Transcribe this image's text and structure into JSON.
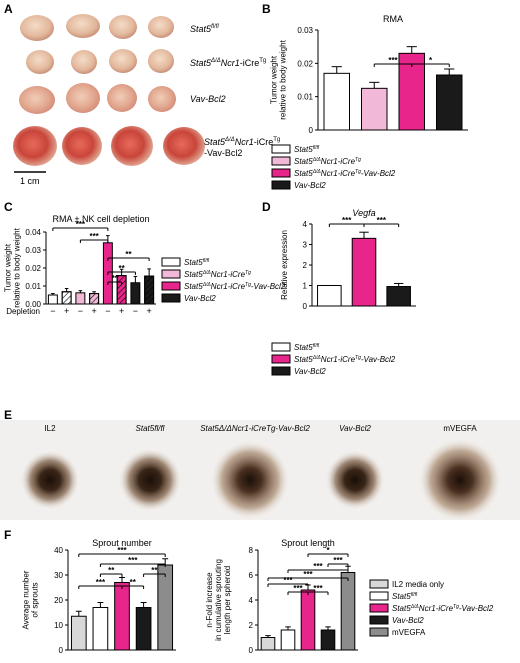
{
  "panels": {
    "A": "A",
    "B": "B",
    "C": "C",
    "D": "D",
    "E": "E",
    "F": "F"
  },
  "panel_a": {
    "rows": [
      {
        "label": "Stat5",
        "sup": "fl/fl",
        "rest": ""
      },
      {
        "label": "Stat5",
        "sup": "Δ/Δ",
        "rest": "Ncr1",
        "rest2": "-iCre",
        "sup2": "Tg"
      },
      {
        "label": "Vav-Bcl2",
        "sup": "",
        "rest": ""
      },
      {
        "label": "Stat5",
        "sup": "Δ/Δ",
        "rest": "Ncr1",
        "rest2": "-iCre",
        "sup2": "Tg",
        "line2": "-Vav-Bcl2"
      }
    ],
    "scalebar": "1 cm"
  },
  "legend_4": [
    {
      "main": "Stat5",
      "sup": "fl/fl",
      "post": "",
      "sup2": "",
      "post2": "",
      "color": "#ffffff"
    },
    {
      "main": "Stat5",
      "sup": "Δ/Δ",
      "post": "Ncr1-iCre",
      "sup2": "Tg",
      "post2": "",
      "color": "#f1b8d8"
    },
    {
      "main": "Stat5",
      "sup": "Δ/Δ",
      "post": "Ncr1-iCre",
      "sup2": "Tg",
      "post2": "-Vav-Bcl2",
      "color": "#e8258a"
    },
    {
      "main": "Vav-Bcl2",
      "sup": "",
      "post": "",
      "sup2": "",
      "post2": "",
      "color": "#1a1a1a"
    }
  ],
  "legend_3": [
    {
      "main": "Stat5",
      "sup": "fl/fl",
      "post": "",
      "sup2": "",
      "post2": "",
      "color": "#ffffff"
    },
    {
      "main": "Stat5",
      "sup": "Δ/Δ",
      "post": "Ncr1-iCre",
      "sup2": "Tg",
      "post2": "-Vav-Bcl2",
      "color": "#e8258a"
    },
    {
      "main": "Vav-Bcl2",
      "sup": "",
      "post": "",
      "sup2": "",
      "post2": "",
      "color": "#1a1a1a"
    }
  ],
  "legend_f": [
    {
      "main": "IL2 media only",
      "sup": "",
      "post": "",
      "sup2": "",
      "post2": "",
      "color": "#d8d8d8",
      "italic": false
    },
    {
      "main": "Stat5",
      "sup": "fl/fl",
      "post": "",
      "sup2": "",
      "post2": "",
      "color": "#ffffff",
      "italic": true
    },
    {
      "main": "Stat5",
      "sup": "Δ/Δ",
      "post": "Ncr1-iCre",
      "sup2": "Tg",
      "post2": "-Vav-Bcl2",
      "color": "#e8258a",
      "italic": true
    },
    {
      "main": "Vav-Bcl2",
      "sup": "",
      "post": "",
      "sup2": "",
      "post2": "",
      "color": "#1a1a1a",
      "italic": true
    },
    {
      "main": "mVEGFA",
      "sup": "",
      "post": "",
      "sup2": "",
      "post2": "",
      "color": "#8c8c8c",
      "italic": false
    }
  ],
  "panel_e": {
    "labels": [
      "IL2",
      "Stat5fl/fl",
      "Stat5Δ/ΔNcr1-iCreTg-Vav-Bcl2",
      "Vav-Bcl2",
      "mVEGFA"
    ]
  },
  "chart_data": [
    {
      "id": "B",
      "type": "bar",
      "title": "RMA",
      "ylabel": "Tumor weight relative to body weight",
      "ylim": [
        0,
        0.03
      ],
      "yticks": [
        "0",
        "0.01",
        "0.02",
        "0.03"
      ],
      "categories": [
        "Stat5fl/fl",
        "Stat5Δ/ΔNcr1-iCreTg",
        "Stat5Δ/ΔNcr1-iCreTg-Vav-Bcl2",
        "Vav-Bcl2"
      ],
      "values": [
        0.017,
        0.0125,
        0.023,
        0.0165
      ],
      "errors": [
        0.002,
        0.0018,
        0.002,
        0.0018
      ],
      "colors": [
        "#ffffff",
        "#f1b8d8",
        "#e8258a",
        "#1a1a1a"
      ],
      "significance": [
        {
          "from": 1,
          "to": 2,
          "label": "***"
        },
        {
          "from": 2,
          "to": 3,
          "label": "*"
        }
      ]
    },
    {
      "id": "C",
      "type": "bar",
      "title": "RMA ± NK cell depletion",
      "ylabel": "Tumor weight relative to body weight",
      "xlabel": "Depletion",
      "ylim": [
        0,
        0.04
      ],
      "yticks": [
        "0.00",
        "0.01",
        "0.02",
        "0.03",
        "0.04"
      ],
      "categories": [
        "−",
        "+",
        "−",
        "+",
        "−",
        "+",
        "−",
        "+"
      ],
      "values": [
        0.005,
        0.0068,
        0.0062,
        0.0058,
        0.034,
        0.0158,
        0.0118,
        0.0155
      ],
      "errors": [
        0.0008,
        0.0018,
        0.0012,
        0.001,
        0.004,
        0.0035,
        0.0035,
        0.004
      ],
      "colors": [
        "#ffffff",
        "#ffffff",
        "#f1b8d8",
        "#f1b8d8",
        "#e8258a",
        "#e8258a",
        "#1a1a1a",
        "#1a1a1a"
      ],
      "hatched": [
        false,
        true,
        false,
        true,
        false,
        true,
        false,
        true
      ],
      "significance": [
        {
          "from": 0,
          "to": 4,
          "label": "***"
        },
        {
          "from": 2,
          "to": 4,
          "label": "***"
        },
        {
          "from": 4,
          "to": 7,
          "label": "**"
        },
        {
          "from": 4,
          "to": 6,
          "label": "**"
        },
        {
          "from": 4,
          "to": 5,
          "label": "**"
        }
      ]
    },
    {
      "id": "D",
      "type": "bar",
      "title": "Vegfa",
      "ylabel": "Relative expression",
      "ylim": [
        0,
        4
      ],
      "yticks": [
        "0",
        "1",
        "2",
        "3",
        "4"
      ],
      "categories": [
        "Stat5fl/fl",
        "Stat5Δ/ΔNcr1-iCreTg-Vav-Bcl2",
        "Vav-Bcl2"
      ],
      "values": [
        1.0,
        3.3,
        0.95
      ],
      "errors": [
        0,
        0.3,
        0.15
      ],
      "colors": [
        "#ffffff",
        "#e8258a",
        "#1a1a1a"
      ],
      "significance": [
        {
          "from": 0,
          "to": 1,
          "label": "***"
        },
        {
          "from": 1,
          "to": 2,
          "label": "***"
        }
      ]
    },
    {
      "id": "F1",
      "type": "bar",
      "title": "Sprout number",
      "ylabel": "Average number of sprouts",
      "ylim": [
        0,
        40
      ],
      "yticks": [
        "0",
        "10",
        "20",
        "30",
        "40"
      ],
      "categories": [
        "IL2 media only",
        "Stat5fl/fl",
        "Stat5Δ/ΔNcr1-iCreTg-Vav-Bcl2",
        "Vav-Bcl2",
        "mVEGFA"
      ],
      "values": [
        13.5,
        17,
        27,
        17,
        34
      ],
      "errors": [
        2,
        2,
        2,
        2,
        2.5
      ],
      "colors": [
        "#d8d8d8",
        "#ffffff",
        "#e8258a",
        "#1a1a1a",
        "#8c8c8c"
      ],
      "significance": [
        {
          "from": 0,
          "to": 4,
          "label": "***"
        },
        {
          "from": 1,
          "to": 4,
          "label": "***"
        },
        {
          "from": 1,
          "to": 2,
          "label": "**"
        },
        {
          "from": 3,
          "to": 4,
          "label": "**"
        },
        {
          "from": 0,
          "to": 2,
          "label": "***"
        },
        {
          "from": 2,
          "to": 3,
          "label": "**"
        }
      ]
    },
    {
      "id": "F2",
      "type": "bar",
      "title": "Sprout length",
      "ylabel": "n-Fold increase in cumulative sprouting length per spheroid",
      "ylim": [
        0,
        8
      ],
      "yticks": [
        "0",
        "2",
        "4",
        "6",
        "8"
      ],
      "categories": [
        "IL2 media only",
        "Stat5fl/fl",
        "Stat5Δ/ΔNcr1-iCreTg-Vav-Bcl2",
        "Vav-Bcl2",
        "mVEGFA"
      ],
      "values": [
        1.0,
        1.6,
        4.8,
        1.6,
        6.2
      ],
      "errors": [
        0.15,
        0.25,
        0.4,
        0.25,
        0.5
      ],
      "colors": [
        "#d8d8d8",
        "#ffffff",
        "#e8258a",
        "#1a1a1a",
        "#8c8c8c"
      ],
      "significance": [
        {
          "from": 2,
          "to": 4,
          "label": "*"
        },
        {
          "from": 3,
          "to": 4,
          "label": "***"
        },
        {
          "from": 1,
          "to": 4,
          "label": "***"
        },
        {
          "from": 0,
          "to": 4,
          "label": "***"
        },
        {
          "from": 0,
          "to": 2,
          "label": "***"
        },
        {
          "from": 1,
          "to": 2,
          "label": "***"
        },
        {
          "from": 2,
          "to": 3,
          "label": "***"
        }
      ]
    }
  ]
}
